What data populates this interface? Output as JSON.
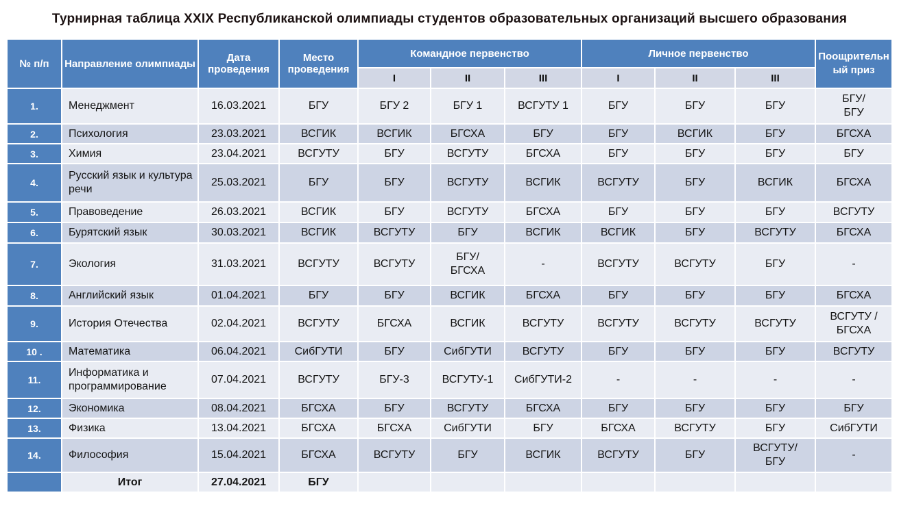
{
  "title": "Турнирная таблица XXIX Республиканской олимпиады студентов образовательных организаций высшего образования",
  "table": {
    "headers": {
      "num": "№ п/п",
      "direction": "Направление олимпиады",
      "date": "Дата проведения",
      "place": "Место проведения",
      "team_group": "Командное первенство",
      "personal_group": "Личное первенство",
      "prize": "Поощрительный приз",
      "sub_ranks": [
        "I",
        "II",
        "III"
      ]
    },
    "rows": [
      {
        "num": "1.",
        "direction": "Менеджмент",
        "date": "16.03.2021",
        "place": "БГУ",
        "team": [
          "БГУ 2",
          "БГУ 1",
          "ВСГУТУ 1"
        ],
        "personal": [
          "БГУ",
          "БГУ",
          "БГУ"
        ],
        "prize": "БГУ/\nБГУ"
      },
      {
        "num": "2.",
        "direction": "Психология",
        "date": "23.03.2021",
        "place": "ВСГИК",
        "team": [
          "ВСГИК",
          "БГСХА",
          "БГУ"
        ],
        "personal": [
          "БГУ",
          "ВСГИК",
          "БГУ"
        ],
        "prize": "БГСХА"
      },
      {
        "num": "3.",
        "direction": "Химия",
        "date": "23.04.2021",
        "place": "ВСГУТУ",
        "team": [
          "БГУ",
          "ВСГУТУ",
          "БГСХА"
        ],
        "personal": [
          "БГУ",
          "БГУ",
          "БГУ"
        ],
        "prize": "БГУ"
      },
      {
        "num": "4.",
        "direction": "Русский язык и культура речи",
        "date": "25.03.2021",
        "place": "БГУ",
        "team": [
          "БГУ",
          "ВСГУТУ",
          "ВСГИК"
        ],
        "personal": [
          "ВСГУТУ",
          "БГУ",
          "ВСГИК"
        ],
        "prize": "БГСХА"
      },
      {
        "num": "5.",
        "direction": "Правоведение",
        "date": "26.03.2021",
        "place": "ВСГИК",
        "team": [
          "БГУ",
          "ВСГУТУ",
          "БГСХА"
        ],
        "personal": [
          "БГУ",
          "БГУ",
          "БГУ"
        ],
        "prize": "ВСГУТУ"
      },
      {
        "num": "6.",
        "direction": "Бурятский язык",
        "date": "30.03.2021",
        "place": "ВСГИК",
        "team": [
          "ВСГУТУ",
          "БГУ",
          "ВСГИК"
        ],
        "personal": [
          "ВСГИК",
          "БГУ",
          "ВСГУТУ"
        ],
        "prize": "БГСХА"
      },
      {
        "num": "7.",
        "direction": "Экология",
        "date": "31.03.2021",
        "place": "ВСГУТУ",
        "team": [
          "ВСГУТУ",
          "БГУ/\nБГСХА",
          "-"
        ],
        "personal": [
          "ВСГУТУ",
          "ВСГУТУ",
          "БГУ"
        ],
        "prize": "-"
      },
      {
        "num": "8.",
        "direction": "Английский язык",
        "date": "01.04.2021",
        "place": "БГУ",
        "team": [
          "БГУ",
          "ВСГИК",
          "БГСХА"
        ],
        "personal": [
          "БГУ",
          "БГУ",
          "БГУ"
        ],
        "prize": "БГСХА"
      },
      {
        "num": "9.",
        "direction": "История Отечества",
        "date": "02.04.2021",
        "place": "ВСГУТУ",
        "team": [
          "БГСХА",
          "ВСГИК",
          "ВСГУТУ"
        ],
        "personal": [
          "ВСГУТУ",
          "ВСГУТУ",
          "ВСГУТУ"
        ],
        "prize": "ВСГУТУ /\nБГСХА"
      },
      {
        "num": "10 .",
        "direction": "Математика",
        "date": "06.04.2021",
        "place": "СибГУТИ",
        "team": [
          "БГУ",
          "СибГУТИ",
          "ВСГУТУ"
        ],
        "personal": [
          "БГУ",
          "БГУ",
          "БГУ"
        ],
        "prize": "ВСГУТУ"
      },
      {
        "num": "11.",
        "direction": "Информатика и программирование",
        "date": "07.04.2021",
        "place": "ВСГУТУ",
        "team": [
          "БГУ-3",
          "ВСГУТУ-1",
          "СибГУТИ-2"
        ],
        "personal": [
          "-",
          "-",
          "-"
        ],
        "prize": "-"
      },
      {
        "num": "12.",
        "direction": "Экономика",
        "date": "08.04.2021",
        "place": "БГСХА",
        "team": [
          "БГУ",
          "ВСГУТУ",
          "БГСХА"
        ],
        "personal": [
          "БГУ",
          "БГУ",
          "БГУ"
        ],
        "prize": "БГУ"
      },
      {
        "num": "13.",
        "direction": "Физика",
        "date": "13.04.2021",
        "place": "БГСХА",
        "team": [
          "БГСХА",
          "СибГУТИ",
          "БГУ"
        ],
        "personal": [
          "БГСХА",
          "ВСГУТУ",
          "БГУ"
        ],
        "prize": "СибГУТИ"
      },
      {
        "num": "14.",
        "direction": "Философия",
        "date": "15.04.2021",
        "place": "БГСХА",
        "team": [
          "ВСГУТУ",
          "БГУ",
          "ВСГИК"
        ],
        "personal": [
          "ВСГУТУ",
          "БГУ",
          "ВСГУТУ/\nБГУ"
        ],
        "prize": "-"
      }
    ],
    "total_row": {
      "num": "",
      "direction": "Итог",
      "date": "27.04.2021",
      "place": "БГУ",
      "team": [
        "",
        "",
        ""
      ],
      "personal": [
        "",
        "",
        ""
      ],
      "prize": ""
    }
  },
  "colors": {
    "header_blue": "#4f81bd",
    "band_light": "#e9ecf3",
    "band_dark": "#cdd4e4",
    "subheader": "#d2d7e5",
    "title_text": "#1c1212"
  }
}
